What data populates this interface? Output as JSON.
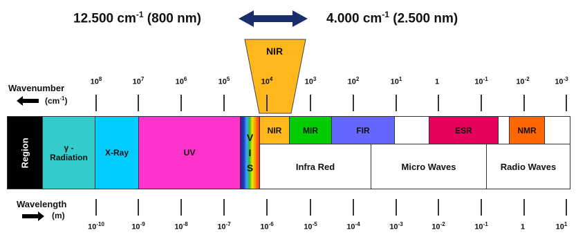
{
  "header": {
    "left": "12.500 cm-1 (800 nm)",
    "left_parts": [
      "12.500 cm",
      "-1",
      " (800 nm)"
    ],
    "right_parts": [
      "4.000 cm",
      "-1",
      " (2.500 nm)"
    ],
    "nir_label": "NIR"
  },
  "axis_labels": {
    "wavenumber": "Wavenumber",
    "wavenumber_unit": "(cm-1)",
    "wavenumber_unit_parts": [
      "(cm",
      "-1",
      ")"
    ],
    "wavelength": "Wavelength",
    "wavelength_unit": "(m)"
  },
  "wavenumber_ticks": [
    {
      "base": "10",
      "exp": "8"
    },
    {
      "base": "10",
      "exp": "7"
    },
    {
      "base": "10",
      "exp": "6"
    },
    {
      "base": "10",
      "exp": "5"
    },
    {
      "base": "10",
      "exp": "4"
    },
    {
      "base": "10",
      "exp": "3"
    },
    {
      "base": "10",
      "exp": "2"
    },
    {
      "base": "10",
      "exp": "1"
    },
    {
      "base": "1",
      "exp": ""
    },
    {
      "base": "10",
      "exp": "-1"
    },
    {
      "base": "10",
      "exp": "-2"
    },
    {
      "base": "10",
      "exp": "-3"
    }
  ],
  "wavelength_ticks": [
    {
      "base": "10",
      "exp": "-10"
    },
    {
      "base": "10",
      "exp": "-9"
    },
    {
      "base": "10",
      "exp": "-8"
    },
    {
      "base": "10",
      "exp": "-7"
    },
    {
      "base": "10",
      "exp": "-6"
    },
    {
      "base": "10",
      "exp": "-5"
    },
    {
      "base": "10",
      "exp": "-4"
    },
    {
      "base": "10",
      "exp": "-3"
    },
    {
      "base": "10",
      "exp": "-2"
    },
    {
      "base": "10",
      "exp": "-1"
    },
    {
      "base": "1",
      "exp": ""
    },
    {
      "base": "10",
      "exp": "1"
    }
  ],
  "regions": {
    "region_label": "Region",
    "gamma": "γ - Radiation",
    "gamma_line1": "γ -",
    "gamma_line2": "Radiation",
    "xray": "X-Ray",
    "uv": "UV",
    "vis": [
      "V",
      "I",
      "S"
    ],
    "nir": "NIR",
    "mir": "MIR",
    "fir": "FIR",
    "esr": "ESR",
    "nmr": "NMR",
    "infra_red": "Infra Red",
    "micro_waves": "Micro Waves",
    "radio_waves": "Radio Waves"
  },
  "colors": {
    "region_bg": "#000000",
    "gamma": "#33cccc",
    "xray": "#00ccff",
    "uv": "#ff33cc",
    "nir": "#ffb81c",
    "mir": "#00cc00",
    "fir": "#6666ff",
    "esr": "#e6005c",
    "nmr": "#ff6600",
    "arrow": "#1a2e6b"
  }
}
